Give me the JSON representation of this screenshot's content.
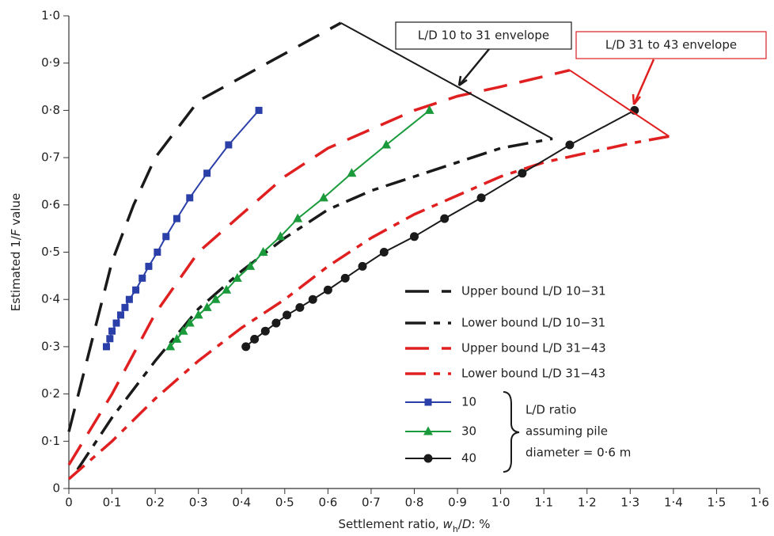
{
  "chart_data": {
    "type": "line",
    "xlabel": [
      "Settlement ratio, ",
      "w",
      "h",
      "/",
      "D",
      ": %"
    ],
    "ylabel": [
      "Estimated 1/",
      "F",
      " value"
    ],
    "xlim": [
      0,
      1.6
    ],
    "ylim": [
      0,
      1.0
    ],
    "xticks": [
      0,
      {
        "value": 0.1,
        "label": "0·1"
      },
      {
        "value": 0.2,
        "label": "0·2"
      },
      {
        "value": 0.3,
        "label": "0·3"
      },
      {
        "value": 0.4,
        "label": "0·4"
      },
      {
        "value": 0.5,
        "label": "0·5"
      },
      {
        "value": 0.6,
        "label": "0·6"
      },
      {
        "value": 0.7,
        "label": "0·7"
      },
      {
        "value": 0.8,
        "label": "0·8"
      },
      {
        "value": 0.9,
        "label": "0·9"
      },
      {
        "value": 1.0,
        "label": "1·0"
      },
      {
        "value": 1.1,
        "label": "1·1"
      },
      {
        "value": 1.2,
        "label": "1·2"
      },
      {
        "value": 1.3,
        "label": "1·3"
      },
      {
        "value": 1.4,
        "label": "1·4"
      },
      {
        "value": 1.5,
        "label": "1·5"
      },
      {
        "value": 1.6,
        "label": "1·6"
      }
    ],
    "yticks": [
      0,
      {
        "value": 0.1,
        "label": "0·1"
      },
      {
        "value": 0.2,
        "label": "0·2"
      },
      {
        "value": 0.3,
        "label": "0·3"
      },
      {
        "value": 0.4,
        "label": "0·4"
      },
      {
        "value": 0.5,
        "label": "0·5"
      },
      {
        "value": 0.6,
        "label": "0·6"
      },
      {
        "value": 0.7,
        "label": "0·7"
      },
      {
        "value": 0.8,
        "label": "0·8"
      },
      {
        "value": 0.9,
        "label": "0·9"
      },
      {
        "value": 1.0,
        "label": "1·0"
      }
    ],
    "series": [
      {
        "name": "Upper bound L/D 10−31",
        "color": "#1a1a1a",
        "dash": "30,16",
        "marker": null,
        "x": [
          0.0,
          0.05,
          0.1,
          0.15,
          0.2,
          0.25,
          0.3,
          0.4,
          0.5,
          0.63
        ],
        "values": [
          0.12,
          0.3,
          0.48,
          0.6,
          0.7,
          0.76,
          0.82,
          0.87,
          0.92,
          0.985
        ]
      },
      {
        "name": "Lower bound L/D 10−31",
        "color": "#1a1a1a",
        "dash": "26,10,8,10",
        "marker": null,
        "x": [
          0.02,
          0.1,
          0.2,
          0.3,
          0.4,
          0.5,
          0.6,
          0.7,
          0.8,
          0.9,
          1.0,
          1.12
        ],
        "values": [
          0.04,
          0.15,
          0.27,
          0.38,
          0.46,
          0.53,
          0.59,
          0.63,
          0.66,
          0.69,
          0.72,
          0.74
        ]
      },
      {
        "name": "Upper bound L/D 31−43",
        "color": "#e02020",
        "dash": "30,16",
        "marker": null,
        "x": [
          0.0,
          0.1,
          0.2,
          0.3,
          0.4,
          0.5,
          0.6,
          0.7,
          0.8,
          0.9,
          1.0,
          1.16
        ],
        "values": [
          0.05,
          0.2,
          0.37,
          0.5,
          0.58,
          0.66,
          0.72,
          0.76,
          0.8,
          0.83,
          0.85,
          0.885
        ]
      },
      {
        "name": "Lower bound L/D 31−43",
        "color": "#e02020",
        "dash": "26,10,8,10",
        "marker": null,
        "x": [
          0.0,
          0.1,
          0.2,
          0.3,
          0.4,
          0.5,
          0.6,
          0.7,
          0.8,
          0.9,
          1.0,
          1.1,
          1.2,
          1.3,
          1.39
        ],
        "values": [
          0.02,
          0.1,
          0.19,
          0.27,
          0.34,
          0.4,
          0.47,
          0.53,
          0.58,
          0.62,
          0.66,
          0.69,
          0.71,
          0.73,
          0.745
        ]
      },
      {
        "name": "10",
        "color": "#2b3fa8",
        "dash": null,
        "marker": "square",
        "x": [
          0.087,
          0.095,
          0.1,
          0.11,
          0.12,
          0.13,
          0.14,
          0.155,
          0.17,
          0.185,
          0.205,
          0.225,
          0.25,
          0.28,
          0.32,
          0.37,
          0.44
        ],
        "values": [
          0.3,
          0.317,
          0.333,
          0.35,
          0.367,
          0.383,
          0.4,
          0.42,
          0.445,
          0.47,
          0.5,
          0.533,
          0.571,
          0.615,
          0.667,
          0.727,
          0.8
        ]
      },
      {
        "name": "30",
        "color": "#1a9a3a",
        "dash": null,
        "marker": "triangle",
        "x": [
          0.235,
          0.25,
          0.265,
          0.28,
          0.3,
          0.32,
          0.34,
          0.365,
          0.39,
          0.42,
          0.45,
          0.49,
          0.53,
          0.59,
          0.655,
          0.735,
          0.835
        ],
        "values": [
          0.3,
          0.316,
          0.333,
          0.35,
          0.367,
          0.383,
          0.4,
          0.42,
          0.445,
          0.47,
          0.5,
          0.533,
          0.571,
          0.615,
          0.667,
          0.727,
          0.8
        ]
      },
      {
        "name": "40",
        "color": "#1a1a1a",
        "dash": null,
        "marker": "circle",
        "x": [
          0.41,
          0.43,
          0.455,
          0.48,
          0.505,
          0.535,
          0.565,
          0.6,
          0.64,
          0.68,
          0.73,
          0.8,
          0.87,
          0.955,
          1.05,
          1.16,
          1.31
        ],
        "values": [
          0.3,
          0.316,
          0.333,
          0.35,
          0.367,
          0.383,
          0.4,
          0.42,
          0.445,
          0.47,
          0.5,
          0.533,
          0.571,
          0.615,
          0.667,
          0.727,
          0.8
        ]
      }
    ],
    "annotations": [
      "L/D 10 to 31 envelope",
      "L/D 31 to 43 envelope"
    ],
    "brace_label": [
      "L/D ratio",
      "assuming pile",
      "diameter = 0·6 m"
    ]
  }
}
